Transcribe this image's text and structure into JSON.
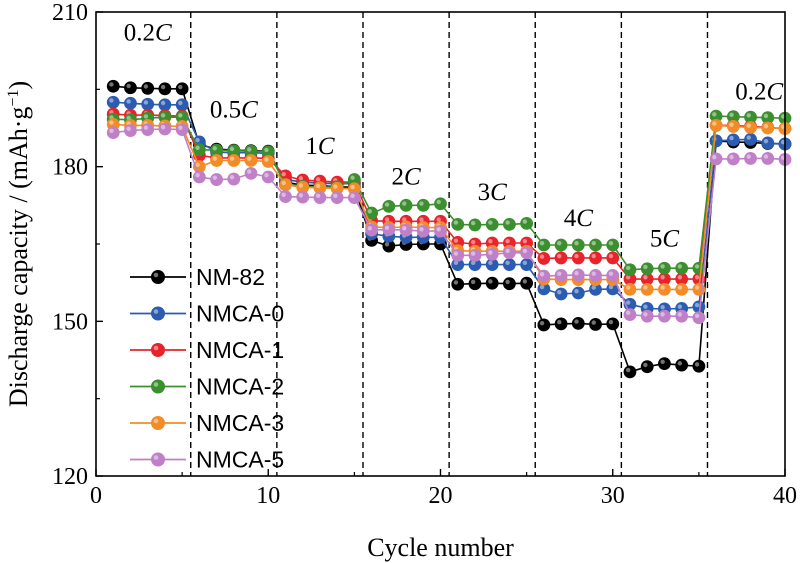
{
  "chart_data": {
    "type": "line",
    "xlabel": "Cycle number",
    "ylabel_main": "Discharge capacity / (mAh·g",
    "ylabel_sup": "−1",
    "ylabel_end": ")",
    "xlim": [
      0,
      40
    ],
    "ylim": [
      120,
      210
    ],
    "xticks": [
      0,
      10,
      20,
      30,
      40
    ],
    "yticks": [
      120,
      150,
      180,
      210
    ],
    "xtick_labels": [
      "0",
      "10",
      "20",
      "30",
      "40"
    ],
    "ytick_labels": [
      "120",
      "150",
      "180",
      "210"
    ],
    "rate_boundaries": [
      5.5,
      10.5,
      15.5,
      20.5,
      25.5,
      30.5,
      35.5
    ],
    "rate_labels": [
      {
        "num": "0.2",
        "unit": "C",
        "x": 3,
        "y": 204.5
      },
      {
        "num": "0.5",
        "unit": "C",
        "x": 8,
        "y": 189.5
      },
      {
        "num": "1",
        "unit": "C",
        "x": 13,
        "y": 182.5
      },
      {
        "num": "2",
        "unit": "C",
        "x": 18,
        "y": 176.5
      },
      {
        "num": "3",
        "unit": "C",
        "x": 23,
        "y": 173.5
      },
      {
        "num": "4",
        "unit": "C",
        "x": 28,
        "y": 168.5
      },
      {
        "num": "5",
        "unit": "C",
        "x": 33,
        "y": 164.5
      },
      {
        "num": "0.2",
        "unit": "C",
        "x": 38.5,
        "y": 193
      }
    ],
    "legend_position": "lower-left",
    "x": [
      1,
      2,
      3,
      4,
      5,
      6,
      7,
      8,
      9,
      10,
      11,
      12,
      13,
      14,
      15,
      16,
      17,
      18,
      19,
      20,
      21,
      22,
      23,
      24,
      25,
      26,
      27,
      28,
      29,
      30,
      31,
      32,
      33,
      34,
      35,
      36,
      37,
      38,
      39,
      40
    ],
    "series": [
      {
        "name": "NM-82",
        "color": "#000000",
        "values": [
          195.6,
          195.3,
          195.2,
          195.1,
          195.1,
          184.3,
          183.4,
          183.2,
          183.1,
          183.0,
          177.0,
          176.4,
          176.3,
          176.1,
          176.0,
          165.7,
          164.6,
          164.9,
          165.0,
          165.0,
          157.2,
          157.3,
          157.4,
          157.3,
          157.4,
          149.3,
          149.5,
          149.6,
          149.4,
          149.5,
          140.2,
          141.2,
          141.8,
          141.5,
          141.3,
          185.0,
          184.8,
          184.7,
          184.5,
          184.4
        ]
      },
      {
        "name": "NMCA-0",
        "color": "#2b5cb0",
        "values": [
          192.5,
          192.3,
          192.1,
          192.0,
          192.0,
          184.8,
          182.8,
          182.7,
          182.7,
          182.6,
          177.5,
          177.0,
          176.8,
          176.7,
          176.7,
          167.0,
          166.5,
          166.3,
          166.3,
          166.3,
          161.0,
          161.0,
          161.0,
          161.0,
          161.0,
          156.3,
          155.3,
          155.5,
          156.2,
          156.3,
          153.3,
          152.5,
          152.4,
          152.5,
          152.8,
          185.0,
          185.2,
          185.3,
          184.6,
          184.4
        ]
      },
      {
        "name": "NMCA-1",
        "color": "#e8232b",
        "values": [
          190.2,
          190.0,
          190.0,
          189.9,
          189.8,
          182.2,
          181.7,
          181.7,
          181.7,
          181.6,
          178.2,
          177.4,
          177.2,
          177.0,
          177.0,
          169.5,
          169.4,
          169.4,
          169.4,
          169.4,
          165.3,
          165.0,
          165.2,
          165.2,
          165.2,
          162.2,
          162.3,
          162.3,
          162.3,
          162.3,
          158.2,
          158.2,
          158.2,
          158.2,
          158.2,
          188.0,
          188.0,
          187.8,
          187.6,
          187.4
        ]
      },
      {
        "name": "NMCA-2",
        "color": "#3c8f2f",
        "values": [
          189.2,
          189.1,
          189.4,
          189.6,
          189.6,
          183.3,
          183.2,
          183.1,
          183.0,
          182.9,
          176.5,
          176.2,
          176.0,
          176.1,
          177.5,
          171.0,
          172.3,
          172.5,
          172.5,
          172.8,
          168.8,
          168.7,
          168.8,
          168.8,
          169.0,
          164.8,
          164.8,
          164.8,
          164.8,
          164.8,
          160.0,
          160.2,
          160.3,
          160.3,
          160.3,
          189.8,
          189.7,
          189.6,
          189.5,
          189.4
        ]
      },
      {
        "name": "NMCA-3",
        "color": "#f28c28",
        "values": [
          188.2,
          188.0,
          188.0,
          187.9,
          187.8,
          180.0,
          181.2,
          181.2,
          181.2,
          181.0,
          176.5,
          176.0,
          175.9,
          175.8,
          175.7,
          168.3,
          168.2,
          168.3,
          168.2,
          168.2,
          163.7,
          163.6,
          163.6,
          163.6,
          163.6,
          158.2,
          158.1,
          158.1,
          158.1,
          158.1,
          156.2,
          156.2,
          156.2,
          156.2,
          156.2,
          188.0,
          187.8,
          187.6,
          187.5,
          187.4
        ]
      },
      {
        "name": "NMCA-5",
        "color": "#c080c8",
        "values": [
          186.6,
          187.0,
          187.2,
          187.3,
          187.2,
          178.0,
          177.5,
          177.6,
          178.7,
          178.0,
          174.2,
          174.1,
          174.0,
          174.0,
          174.0,
          167.7,
          167.8,
          167.7,
          167.5,
          167.5,
          162.8,
          162.8,
          163.0,
          163.3,
          163.3,
          158.8,
          158.9,
          159.0,
          158.9,
          158.9,
          151.3,
          151.0,
          151.0,
          151.0,
          150.7,
          181.5,
          181.5,
          181.6,
          181.6,
          181.4
        ]
      }
    ]
  }
}
